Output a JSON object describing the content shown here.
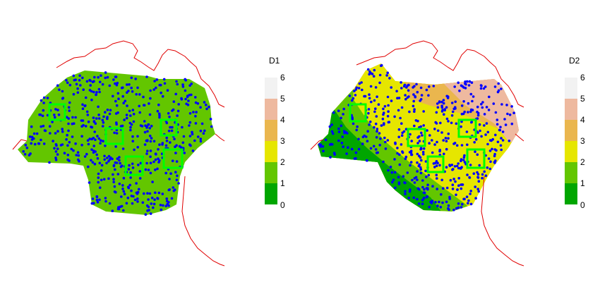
{
  "panels": [
    {
      "id": "d1",
      "legend_title": "D1",
      "dominant_class": "2",
      "zones": [
        "2"
      ],
      "point_count": 560,
      "sample_box_count": 5
    },
    {
      "id": "d2",
      "legend_title": "D2",
      "zones": [
        "1",
        "2",
        "3",
        "4"
      ],
      "point_count": 560,
      "sample_box_count": 5
    }
  ],
  "legend": {
    "ticks": [
      "0",
      "1",
      "2",
      "3",
      "4",
      "5",
      "6"
    ],
    "classes": [
      {
        "range": "0-1",
        "color": "#00A600"
      },
      {
        "range": "1-2",
        "color": "#63C600"
      },
      {
        "range": "2-3",
        "color": "#E6E600"
      },
      {
        "range": "3-4",
        "color": "#EAB64E"
      },
      {
        "range": "4-5",
        "color": "#EEB99F"
      },
      {
        "range": "5-6",
        "color": "#F2F2F2"
      }
    ]
  },
  "colors": {
    "points": "#0000FF",
    "sample_boxes": "#00FF00",
    "boundary": "#E00000"
  }
}
